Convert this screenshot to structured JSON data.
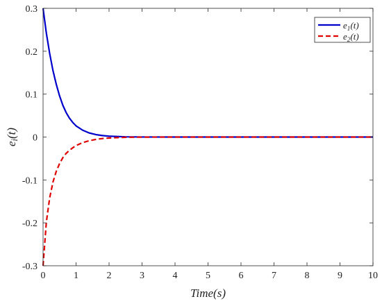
{
  "chart_data": {
    "type": "line",
    "title": "",
    "xlabel": "Time(s)",
    "ylabel": "e_i(t)",
    "xlim": [
      0,
      10
    ],
    "ylim": [
      -0.3,
      0.3
    ],
    "xticks": [
      0,
      1,
      2,
      3,
      4,
      5,
      6,
      7,
      8,
      9,
      10
    ],
    "xtick_labels": [
      "0",
      "1",
      "2",
      "3",
      "4",
      "5",
      "6",
      "7",
      "8",
      "9",
      "10"
    ],
    "yticks": [
      -0.3,
      -0.2,
      -0.1,
      0,
      0.1,
      0.2,
      0.3
    ],
    "ytick_labels": [
      "-0.3",
      "-0.2",
      "-0.1",
      "0",
      "0.1",
      "0.2",
      "0.3"
    ],
    "grid": false,
    "legend_position": "top-right",
    "series": [
      {
        "name": "e_1(t)",
        "color": "#0000cc",
        "line_style": "solid",
        "x": [
          0,
          0.1,
          0.2,
          0.3,
          0.4,
          0.5,
          0.6,
          0.7,
          0.8,
          0.9,
          1.0,
          1.2,
          1.4,
          1.6,
          1.8,
          2.0,
          2.5,
          3.0,
          4.0,
          5.0,
          6.0,
          7.0,
          8.0,
          9.0,
          10.0
        ],
        "y": [
          0.3,
          0.242,
          0.195,
          0.155,
          0.123,
          0.096,
          0.074,
          0.057,
          0.044,
          0.034,
          0.026,
          0.016,
          0.0095,
          0.0057,
          0.0034,
          0.002,
          0.0005,
          0.0001,
          0,
          0,
          0,
          0,
          0,
          0,
          0
        ]
      },
      {
        "name": "e_2(t)",
        "color": "#e00000",
        "line_style": "dashed",
        "x": [
          0,
          0.1,
          0.2,
          0.3,
          0.4,
          0.5,
          0.6,
          0.7,
          0.8,
          0.9,
          1.0,
          1.2,
          1.4,
          1.6,
          1.8,
          2.0,
          2.5,
          3.0,
          4.0,
          5.0,
          6.0,
          7.0,
          8.0,
          9.0,
          10.0
        ],
        "y": [
          -0.3,
          -0.198,
          -0.142,
          -0.105,
          -0.08,
          -0.062,
          -0.048,
          -0.038,
          -0.031,
          -0.025,
          -0.02,
          -0.013,
          -0.0085,
          -0.0055,
          -0.0035,
          -0.0022,
          -0.0006,
          -0.0002,
          0,
          0,
          0,
          0,
          0,
          0,
          0
        ]
      }
    ]
  }
}
